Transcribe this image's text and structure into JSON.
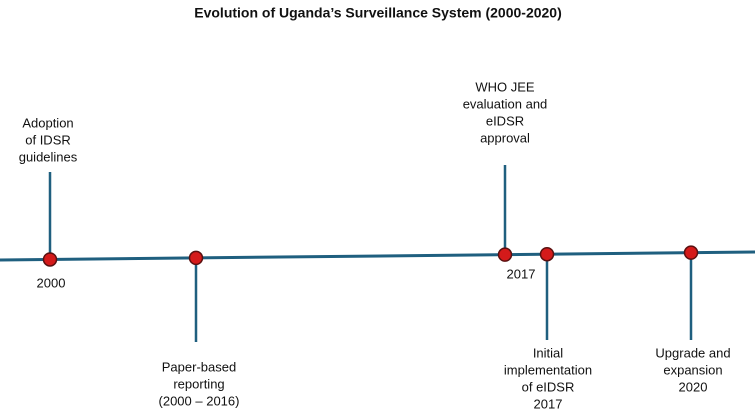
{
  "title": "Evolution of Uganda’s Surveillance System (2000-2020)",
  "events": [
    {
      "label": [
        "Adoption",
        "of IDSR",
        "guidelines"
      ],
      "year": "2000"
    },
    {
      "label": [
        "Paper-based",
        "reporting",
        "(2000 – 2016)"
      ]
    },
    {
      "label": [
        "WHO JEE",
        "evaluation and",
        "eIDSR",
        "approval"
      ],
      "year": "2017"
    },
    {
      "label": [
        "Initial",
        "implementation",
        "of eIDSR",
        "2017"
      ]
    },
    {
      "label": [
        "Upgrade and",
        "expansion",
        "2020"
      ]
    }
  ]
}
